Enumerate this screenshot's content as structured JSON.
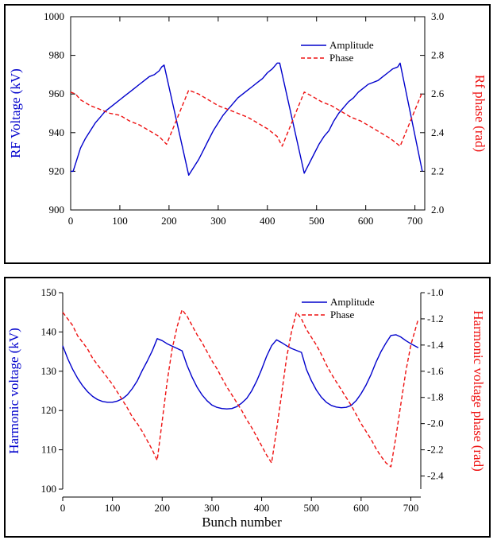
{
  "colors": {
    "amplitude": "#0000cc",
    "phase": "#ee1111"
  },
  "chart_data": [
    {
      "type": "line",
      "title": "",
      "xlabel": "",
      "ylabel_left": "RF Voltage (kV)",
      "ylabel_right": "Rf phase (rad)",
      "xlim": [
        0,
        720
      ],
      "ylim_left": [
        900,
        1000
      ],
      "ylim_right": [
        2.0,
        3.0
      ],
      "xticks": [
        0,
        100,
        200,
        300,
        400,
        500,
        600,
        700
      ],
      "yticks_left": [
        900,
        920,
        940,
        960,
        980,
        1000
      ],
      "yticks_right": [
        2.0,
        2.2,
        2.4,
        2.6,
        2.8,
        3.0
      ],
      "ytick_labels_right": [
        "2.0",
        "2.2",
        "2.4",
        "2.6",
        "2.8",
        "3.0"
      ],
      "legend": {
        "position": "top-right",
        "entries": [
          "Amplitude",
          "Phase"
        ]
      },
      "series": [
        {
          "name": "Amplitude",
          "axis": "left",
          "style": "solid",
          "x": [
            0,
            5,
            10,
            20,
            30,
            40,
            50,
            60,
            70,
            80,
            90,
            100,
            110,
            120,
            130,
            140,
            150,
            160,
            170,
            180,
            185,
            190,
            240,
            250,
            260,
            270,
            280,
            290,
            300,
            310,
            320,
            330,
            340,
            350,
            360,
            370,
            380,
            390,
            400,
            410,
            420,
            425,
            475,
            485,
            495,
            505,
            515,
            525,
            535,
            545,
            555,
            565,
            575,
            585,
            595,
            605,
            615,
            625,
            635,
            645,
            655,
            665,
            670,
            715
          ],
          "y": [
            920,
            920,
            924,
            932,
            937,
            941,
            945,
            948,
            951,
            953,
            955,
            957,
            959,
            961,
            963,
            965,
            967,
            969,
            970,
            972,
            974,
            975,
            918,
            922,
            926,
            931,
            936,
            941,
            945,
            949,
            952,
            955,
            958,
            960,
            962,
            964,
            966,
            968,
            971,
            973,
            976,
            976,
            919,
            924,
            929,
            934,
            938,
            941,
            946,
            950,
            953,
            956,
            958,
            961,
            963,
            965,
            966,
            967,
            969,
            971,
            973,
            974,
            976,
            920
          ]
        },
        {
          "name": "Phase",
          "axis": "right",
          "style": "dashed",
          "x": [
            0,
            10,
            20,
            40,
            60,
            80,
            100,
            120,
            140,
            160,
            180,
            195,
            240,
            260,
            280,
            300,
            320,
            340,
            360,
            380,
            400,
            420,
            430,
            475,
            490,
            510,
            530,
            550,
            570,
            590,
            610,
            630,
            650,
            670,
            715
          ],
          "y": [
            2.61,
            2.6,
            2.57,
            2.54,
            2.52,
            2.5,
            2.49,
            2.46,
            2.44,
            2.41,
            2.38,
            2.34,
            2.62,
            2.6,
            2.57,
            2.54,
            2.52,
            2.5,
            2.48,
            2.45,
            2.42,
            2.38,
            2.33,
            2.61,
            2.59,
            2.56,
            2.54,
            2.51,
            2.48,
            2.46,
            2.43,
            2.4,
            2.37,
            2.33,
            2.61
          ]
        }
      ]
    },
    {
      "type": "line",
      "title": "",
      "xlabel": "Bunch number",
      "ylabel_left": "Harmonic voltage (kV)",
      "ylabel_right": "Harmonic voltage phase (rad)",
      "xlim": [
        0,
        720
      ],
      "ylim_left": [
        100,
        150
      ],
      "ylim_right": [
        -2.5,
        -1.0
      ],
      "xticks": [
        0,
        100,
        200,
        300,
        400,
        500,
        600,
        700
      ],
      "yticks_left": [
        100,
        110,
        120,
        130,
        140,
        150
      ],
      "yticks_right": [
        -2.4,
        -2.2,
        -2.0,
        -1.8,
        -1.6,
        -1.4,
        -1.2,
        -1.0
      ],
      "ytick_labels_right": [
        "-2.4",
        "-2.2",
        "-2.0",
        "-1.8",
        "-1.6",
        "-1.4",
        "-1.2",
        "-1.0"
      ],
      "legend": {
        "position": "top-right",
        "entries": [
          "Amplitude",
          "Phase"
        ]
      },
      "series": [
        {
          "name": "Amplitude",
          "axis": "left",
          "style": "solid",
          "x": [
            0,
            10,
            20,
            30,
            40,
            50,
            60,
            70,
            80,
            90,
            100,
            110,
            120,
            130,
            140,
            150,
            160,
            170,
            180,
            190,
            200,
            210,
            220,
            230,
            240,
            250,
            260,
            270,
            280,
            290,
            300,
            310,
            320,
            330,
            340,
            350,
            360,
            370,
            380,
            390,
            400,
            410,
            420,
            430,
            440,
            450,
            460,
            470,
            480,
            490,
            500,
            510,
            520,
            530,
            540,
            550,
            560,
            570,
            580,
            590,
            600,
            610,
            620,
            630,
            640,
            650,
            660,
            670,
            680,
            690,
            700,
            715
          ],
          "y": [
            136.5,
            133.2,
            130.5,
            128.2,
            126.3,
            124.8,
            123.6,
            122.8,
            122.3,
            122.1,
            122.1,
            122.4,
            123.0,
            124.0,
            125.6,
            127.6,
            130.2,
            132.6,
            135.2,
            138.3,
            137.8,
            137.0,
            136.4,
            135.8,
            135.2,
            131.5,
            128.5,
            126.0,
            124.0,
            122.5,
            121.4,
            120.8,
            120.5,
            120.4,
            120.5,
            121.0,
            121.9,
            123.1,
            125.0,
            127.5,
            130.5,
            133.8,
            136.5,
            138.0,
            137.3,
            136.5,
            135.8,
            135.3,
            134.8,
            130.5,
            127.6,
            125.2,
            123.4,
            122.1,
            121.3,
            120.9,
            120.7,
            120.8,
            121.3,
            122.5,
            124.3,
            126.5,
            129.2,
            132.3,
            135.0,
            137.2,
            139.1,
            139.3,
            138.7,
            137.8,
            137.0,
            136.0
          ]
        },
        {
          "name": "Phase",
          "axis": "right",
          "style": "dashed",
          "x": [
            0,
            10,
            20,
            30,
            40,
            50,
            60,
            70,
            80,
            90,
            100,
            110,
            120,
            130,
            140,
            150,
            160,
            170,
            180,
            190,
            200,
            210,
            220,
            230,
            240,
            250,
            260,
            270,
            280,
            290,
            300,
            310,
            320,
            330,
            340,
            350,
            360,
            370,
            380,
            390,
            400,
            410,
            420,
            430,
            440,
            450,
            460,
            470,
            480,
            490,
            500,
            510,
            520,
            530,
            540,
            550,
            560,
            570,
            580,
            590,
            600,
            610,
            620,
            630,
            640,
            650,
            660,
            670,
            680,
            690,
            700,
            715
          ],
          "y": [
            -1.15,
            -1.2,
            -1.25,
            -1.33,
            -1.38,
            -1.43,
            -1.5,
            -1.55,
            -1.6,
            -1.65,
            -1.7,
            -1.76,
            -1.82,
            -1.88,
            -1.95,
            -2.0,
            -2.06,
            -2.13,
            -2.2,
            -2.28,
            -1.98,
            -1.68,
            -1.43,
            -1.26,
            -1.13,
            -1.18,
            -1.25,
            -1.32,
            -1.38,
            -1.45,
            -1.52,
            -1.58,
            -1.65,
            -1.72,
            -1.78,
            -1.84,
            -1.9,
            -1.97,
            -2.03,
            -2.1,
            -2.17,
            -2.24,
            -2.3,
            -2.05,
            -1.78,
            -1.5,
            -1.3,
            -1.15,
            -1.2,
            -1.28,
            -1.34,
            -1.4,
            -1.47,
            -1.55,
            -1.62,
            -1.68,
            -1.74,
            -1.8,
            -1.86,
            -1.93,
            -2.0,
            -2.06,
            -2.12,
            -2.19,
            -2.25,
            -2.3,
            -2.33,
            -2.1,
            -1.85,
            -1.6,
            -1.4,
            -1.2
          ]
        }
      ]
    }
  ]
}
